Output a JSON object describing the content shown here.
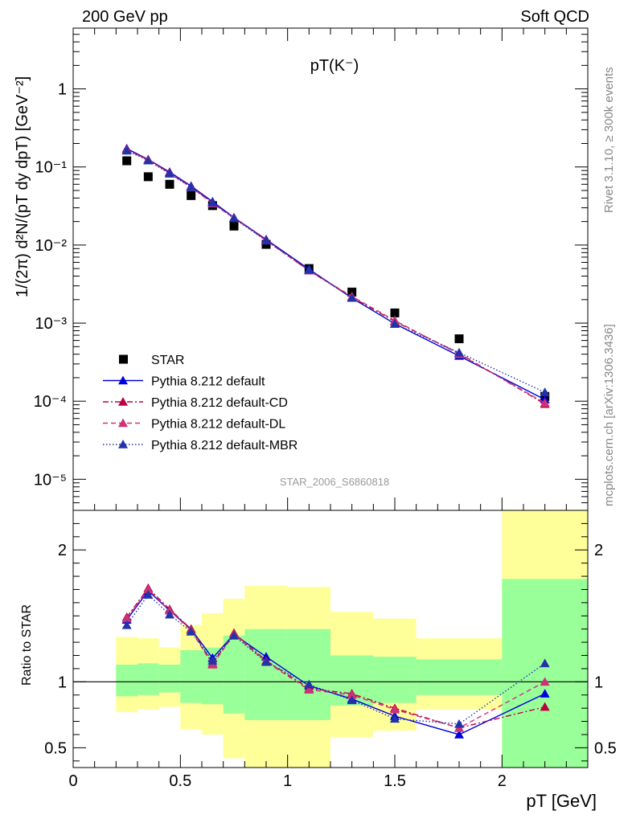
{
  "header": {
    "left": "200 GeV pp",
    "right": "Soft QCD"
  },
  "side_text": {
    "top": "Rivet 3.1.10, ≥ 300k events",
    "bottom": "mcplots.cern.ch [arXiv:1306.3436]"
  },
  "chart_data": {
    "type": "scatter",
    "title": "pT(K⁻)",
    "analysis_label": "STAR_2006_S6860818",
    "top_panel": {
      "ylabel": "1/(2π) d²N/(pT dy dpT) [GeV⁻²]",
      "yscale": "log",
      "ylim": [
        4e-06,
        6
      ],
      "yticks": [
        {
          "value": 1,
          "label": "1"
        },
        {
          "value": 0.1,
          "label": "10⁻¹"
        },
        {
          "value": 0.01,
          "label": "10⁻²"
        },
        {
          "value": 0.001,
          "label": "10⁻³"
        },
        {
          "value": 0.0001,
          "label": "10⁻⁴"
        },
        {
          "value": 1e-05,
          "label": "10⁻⁵"
        }
      ],
      "x": [
        0.25,
        0.35,
        0.45,
        0.55,
        0.65,
        0.75,
        0.9,
        1.1,
        1.3,
        1.5,
        1.8,
        2.2
      ],
      "series": [
        {
          "name": "STAR",
          "style": "data",
          "color": "#000000",
          "values": [
            0.12,
            0.075,
            0.06,
            0.043,
            0.032,
            0.0175,
            0.0102,
            0.005,
            0.0025,
            0.00135,
            0.00063,
            0.000115
          ]
        },
        {
          "name": "Pythia 8.212 default",
          "style": "solid",
          "color": "#0000dd",
          "values": [
            0.172,
            0.125,
            0.086,
            0.057,
            0.036,
            0.0225,
            0.0118,
            0.0049,
            0.0021,
            0.00098,
            0.00038,
            0.000105
          ]
        },
        {
          "name": "Pythia 8.212 default-CD",
          "style": "dashdot",
          "color": "#bb0044",
          "values": [
            0.168,
            0.124,
            0.084,
            0.056,
            0.035,
            0.0222,
            0.0116,
            0.0047,
            0.00215,
            0.00105,
            0.00041,
            9.2e-05
          ]
        },
        {
          "name": "Pythia 8.212 default-DL",
          "style": "dashed",
          "color": "#cc3377",
          "values": [
            0.165,
            0.123,
            0.083,
            0.055,
            0.034,
            0.0222,
            0.0114,
            0.0047,
            0.0022,
            0.00108,
            0.0004,
            9.5e-05
          ]
        },
        {
          "name": "Pythia 8.212 default-MBR",
          "style": "dotted",
          "color": "#2233aa",
          "values": [
            0.162,
            0.121,
            0.082,
            0.055,
            0.035,
            0.022,
            0.0114,
            0.0048,
            0.0021,
            0.00098,
            0.00042,
            0.00013
          ]
        }
      ]
    },
    "ratio_panel": {
      "ylabel": "Ratio to STAR",
      "ylim": [
        0.35,
        2.3
      ],
      "yticks": [
        {
          "value": 0.5,
          "label": "0.5"
        },
        {
          "value": 1,
          "label": "1"
        },
        {
          "value": 2,
          "label": "2"
        }
      ],
      "bins": [
        {
          "lo": 0.2,
          "hi": 0.3,
          "inner": [
            0.89,
            1.13
          ],
          "outer": [
            0.77,
            1.34
          ]
        },
        {
          "lo": 0.3,
          "hi": 0.4,
          "inner": [
            0.9,
            1.14
          ],
          "outer": [
            0.79,
            1.33
          ]
        },
        {
          "lo": 0.4,
          "hi": 0.5,
          "inner": [
            0.92,
            1.13
          ],
          "outer": [
            0.81,
            1.26
          ]
        },
        {
          "lo": 0.5,
          "hi": 0.6,
          "inner": [
            0.84,
            1.24
          ],
          "outer": [
            0.64,
            1.43
          ]
        },
        {
          "lo": 0.6,
          "hi": 0.7,
          "inner": [
            0.83,
            1.26
          ],
          "outer": [
            0.6,
            1.52
          ]
        },
        {
          "lo": 0.7,
          "hi": 0.8,
          "inner": [
            0.76,
            1.35
          ],
          "outer": [
            0.42,
            1.63
          ]
        },
        {
          "lo": 0.8,
          "hi": 1.0,
          "inner": [
            0.71,
            1.4
          ],
          "outer": [
            0.35,
            1.73
          ]
        },
        {
          "lo": 1.0,
          "hi": 1.2,
          "inner": [
            0.71,
            1.4
          ],
          "outer": [
            0.35,
            1.72
          ]
        },
        {
          "lo": 1.2,
          "hi": 1.4,
          "inner": [
            0.82,
            1.2
          ],
          "outer": [
            0.58,
            1.53
          ]
        },
        {
          "lo": 1.4,
          "hi": 1.6,
          "inner": [
            0.84,
            1.19
          ],
          "outer": [
            0.63,
            1.48
          ]
        },
        {
          "lo": 1.6,
          "hi": 2.0,
          "inner": [
            0.9,
            1.17
          ],
          "outer": [
            0.79,
            1.33
          ]
        },
        {
          "lo": 2.0,
          "hi": 2.4,
          "inner": [
            0.35,
            1.78
          ],
          "outer": [
            0.35,
            2.3
          ]
        }
      ],
      "series": [
        {
          "name": "Pythia 8.212 default",
          "values": [
            1.47,
            1.69,
            1.54,
            1.4,
            1.18,
            1.36,
            1.19,
            0.97,
            0.87,
            0.74,
            0.6,
            0.91
          ]
        },
        {
          "name": "Pythia 8.212 default-CD",
          "values": [
            1.49,
            1.71,
            1.55,
            1.4,
            1.14,
            1.37,
            1.16,
            0.95,
            0.91,
            0.8,
            0.65,
            0.81
          ]
        },
        {
          "name": "Pythia 8.212 default-DL",
          "values": [
            1.48,
            1.7,
            1.54,
            1.39,
            1.13,
            1.36,
            1.15,
            0.94,
            0.9,
            0.79,
            0.65,
            1.0
          ]
        },
        {
          "name": "Pythia 8.212 default-MBR",
          "values": [
            1.43,
            1.66,
            1.51,
            1.38,
            1.16,
            1.35,
            1.15,
            0.98,
            0.86,
            0.72,
            0.68,
            1.14
          ]
        }
      ]
    },
    "xaxis": {
      "label": "pT [GeV]",
      "xlim": [
        0,
        2.4
      ],
      "ticks": [
        {
          "value": 0,
          "label": "0"
        },
        {
          "value": 0.5,
          "label": "0.5"
        },
        {
          "value": 1,
          "label": "1"
        },
        {
          "value": 1.5,
          "label": "1.5"
        },
        {
          "value": 2,
          "label": "2"
        }
      ]
    }
  }
}
